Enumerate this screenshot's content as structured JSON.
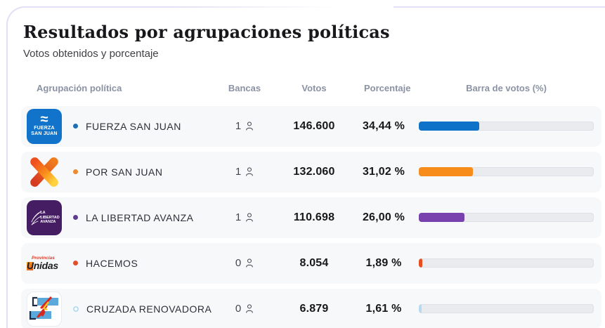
{
  "header": {
    "title": "Resultados por agrupaciones políticas",
    "subtitle": "Votos obtenidos y porcentaje"
  },
  "table": {
    "columns": {
      "party": "Agrupación política",
      "seats": "Bancas",
      "votes": "Votos",
      "percentage": "Porcentaje",
      "bar": "Barra de votos (%)"
    },
    "rows": [
      {
        "name": "FUERZA SAN JUAN",
        "seats": "1",
        "votes": "146.600",
        "percentage": "34,44 %",
        "pct": 34.44,
        "bar_color": "#0d72c8",
        "bullet_color": "#1f6fb4",
        "bullet_hollow": false,
        "logo": "fuerza-san-juan",
        "logo_text": [
          "FUERZA",
          "SAN JUAN"
        ]
      },
      {
        "name": "POR SAN JUAN",
        "seats": "1",
        "votes": "132.060",
        "percentage": "31,02 %",
        "pct": 31.02,
        "bar_color": "#f78c1b",
        "bullet_color": "#ee8c2d",
        "bullet_hollow": false,
        "logo": "por-san-juan",
        "logo_text": []
      },
      {
        "name": "LA LIBERTAD AVANZA",
        "seats": "1",
        "votes": "110.698",
        "percentage": "26,00 %",
        "pct": 26.0,
        "bar_color": "#7841ad",
        "bullet_color": "#5f3d8e",
        "bullet_hollow": false,
        "logo": "la-libertad-avanza",
        "logo_text": [
          "LA",
          "LIBERTAD",
          "AVANZA"
        ]
      },
      {
        "name": "HACEMOS",
        "seats": "0",
        "votes": "8.054",
        "percentage": "1,89 %",
        "pct": 1.89,
        "bar_color": "#e84d1f",
        "bullet_color": "#df5029",
        "bullet_hollow": false,
        "logo": "provincias-unidas",
        "logo_text": [
          "Provincias",
          "Unidas"
        ]
      },
      {
        "name": "CRUZADA RENOVADORA",
        "seats": "0",
        "votes": "6.879",
        "percentage": "1,61 %",
        "pct": 1.61,
        "bar_color": "#b7daf2",
        "bullet_color": "#b9dcf2",
        "bullet_hollow": true,
        "logo": "cruzada-renovadora",
        "logo_text": []
      }
    ]
  },
  "chart_data": {
    "type": "bar",
    "categories": [
      "FUERZA SAN JUAN",
      "POR SAN JUAN",
      "LA LIBERTAD AVANZA",
      "HACEMOS",
      "CRUZADA RENOVADORA"
    ],
    "series": [
      {
        "name": "Votos",
        "values": [
          146600,
          132060,
          110698,
          8054,
          6879
        ]
      },
      {
        "name": "Porcentaje",
        "values": [
          34.44,
          31.02,
          26.0,
          1.89,
          1.61
        ]
      },
      {
        "name": "Bancas",
        "values": [
          1,
          1,
          1,
          0,
          0
        ]
      }
    ],
    "title": "Resultados por agrupaciones políticas",
    "xlabel": "Barra de votos (%)",
    "xlim": [
      0,
      100
    ],
    "legend_position": "none",
    "grid": false
  }
}
